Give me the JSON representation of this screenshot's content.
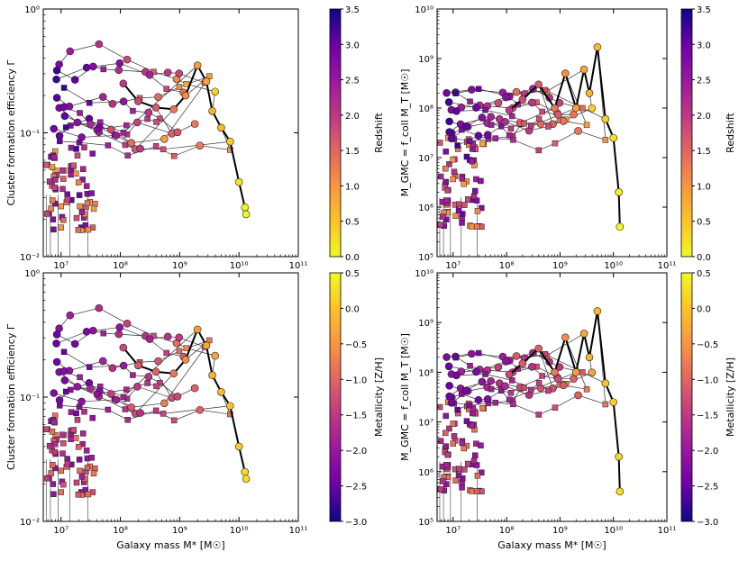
{
  "chart_data": [
    {
      "type": "scatter",
      "panel": "top-left",
      "ylabel": "Cluster formation efficiency Γ",
      "xlabel": "",
      "xlim_log10": [
        6.7,
        11
      ],
      "ylim_log10": [
        -2,
        0
      ],
      "x_ticks": [
        {
          "v": 7,
          "label": "10⁷"
        },
        {
          "v": 8,
          "label": "10⁸"
        },
        {
          "v": 9,
          "label": "10⁹"
        },
        {
          "v": 10,
          "label": "10¹⁰"
        },
        {
          "v": 11,
          "label": "10¹¹"
        }
      ],
      "y_ticks": [
        {
          "v": -2,
          "label": "10⁻²"
        },
        {
          "v": -1,
          "label": "10⁻¹"
        },
        {
          "v": 0,
          "label": "10⁰"
        }
      ],
      "color_by": "redshift",
      "colorbar": {
        "label": "Redshift",
        "min": 0,
        "max": 3.5,
        "ticks": [
          "0.0",
          "0.5",
          "1.0",
          "1.5",
          "2.0",
          "2.5",
          "3.0",
          "3.5"
        ],
        "colormap": "plasma_r"
      }
    },
    {
      "type": "scatter",
      "panel": "top-right",
      "ylabel": "M_GMC = f_coll M_T [M☉]",
      "xlabel": "",
      "xlim_log10": [
        6.7,
        11
      ],
      "ylim_log10": [
        5,
        10
      ],
      "x_ticks": [
        {
          "v": 7,
          "label": "10⁷"
        },
        {
          "v": 8,
          "label": "10⁸"
        },
        {
          "v": 9,
          "label": "10⁹"
        },
        {
          "v": 10,
          "label": "10¹⁰"
        },
        {
          "v": 11,
          "label": "10¹¹"
        }
      ],
      "y_ticks": [
        {
          "v": 5,
          "label": "10⁵"
        },
        {
          "v": 6,
          "label": "10⁶"
        },
        {
          "v": 7,
          "label": "10⁷"
        },
        {
          "v": 8,
          "label": "10⁸"
        },
        {
          "v": 9,
          "label": "10⁹"
        },
        {
          "v": 10,
          "label": "10¹⁰"
        }
      ],
      "color_by": "redshift",
      "colorbar": {
        "label": "Redshift",
        "min": 0,
        "max": 3.5,
        "ticks": [
          "0.0",
          "0.5",
          "1.0",
          "1.5",
          "2.0",
          "2.5",
          "3.0",
          "3.5"
        ],
        "colormap": "plasma_r"
      }
    },
    {
      "type": "scatter",
      "panel": "bottom-left",
      "ylabel": "Cluster formation efficiency Γ",
      "xlabel": "Galaxy mass M* [M☉]",
      "xlim_log10": [
        6.7,
        11
      ],
      "ylim_log10": [
        -2,
        0
      ],
      "x_ticks": [
        {
          "v": 7,
          "label": "10⁷"
        },
        {
          "v": 8,
          "label": "10⁸"
        },
        {
          "v": 9,
          "label": "10⁹"
        },
        {
          "v": 10,
          "label": "10¹⁰"
        },
        {
          "v": 11,
          "label": "10¹¹"
        }
      ],
      "y_ticks": [
        {
          "v": -2,
          "label": "10⁻²"
        },
        {
          "v": -1,
          "label": "10⁻¹"
        },
        {
          "v": 0,
          "label": "10⁰"
        }
      ],
      "color_by": "metallicity",
      "colorbar": {
        "label": "Metallicity [Z/H]",
        "min": -3,
        "max": 0.5,
        "ticks": [
          "−3.0",
          "−2.5",
          "−2.0",
          "−1.5",
          "−1.0",
          "−0.5",
          "0.0",
          "0.5"
        ],
        "colormap": "plasma"
      }
    },
    {
      "type": "scatter",
      "panel": "bottom-right",
      "ylabel": "M_GMC = f_coll M_T [M☉]",
      "xlabel": "Galaxy mass M* [M☉]",
      "xlim_log10": [
        6.7,
        11
      ],
      "ylim_log10": [
        5,
        10
      ],
      "x_ticks": [
        {
          "v": 7,
          "label": "10⁷"
        },
        {
          "v": 8,
          "label": "10⁸"
        },
        {
          "v": 9,
          "label": "10⁹"
        },
        {
          "v": 10,
          "label": "10¹⁰"
        },
        {
          "v": 11,
          "label": "10¹¹"
        }
      ],
      "y_ticks": [
        {
          "v": 5,
          "label": "10⁵"
        },
        {
          "v": 6,
          "label": "10⁶"
        },
        {
          "v": 7,
          "label": "10⁷"
        },
        {
          "v": 8,
          "label": "10⁸"
        },
        {
          "v": 9,
          "label": "10⁹"
        },
        {
          "v": 10,
          "label": "10¹⁰"
        }
      ],
      "color_by": "metallicity",
      "colorbar": {
        "label": "Metallicity [Z/H]",
        "min": -3,
        "max": 0.5,
        "ticks": [
          "−3.0",
          "−2.5",
          "−2.0",
          "−1.5",
          "−1.0",
          "−0.5",
          "0.0",
          "0.5"
        ],
        "colormap": "plasma"
      }
    }
  ],
  "main_track": {
    "description": "thick black line: main galaxy evolutionary track",
    "points": [
      {
        "logM": 8.05,
        "gamma": 0.25,
        "mgmc": 90000000.0,
        "z": 2.0,
        "zh": -1.3
      },
      {
        "logM": 8.3,
        "gamma": 0.18,
        "mgmc": 150000000.0,
        "z": 1.8,
        "zh": -1.1
      },
      {
        "logM": 8.6,
        "gamma": 0.16,
        "mgmc": 300000000.0,
        "z": 1.6,
        "zh": -1.0
      },
      {
        "logM": 8.9,
        "gamma": 0.155,
        "mgmc": 100000000.0,
        "z": 1.3,
        "zh": -0.8
      },
      {
        "logM": 9.1,
        "gamma": 0.2,
        "mgmc": 500000000.0,
        "z": 1.1,
        "zh": -0.6
      },
      {
        "logM": 9.3,
        "gamma": 0.35,
        "mgmc": 100000000.0,
        "z": 0.9,
        "zh": -0.4
      },
      {
        "logM": 9.45,
        "gamma": 0.26,
        "mgmc": 600000000.0,
        "z": 0.8,
        "zh": -0.3
      },
      {
        "logM": 9.55,
        "gamma": 0.15,
        "mgmc": 200000000.0,
        "z": 0.7,
        "zh": -0.2
      },
      {
        "logM": 9.7,
        "gamma": 0.11,
        "mgmc": 1700000000.0,
        "z": 0.6,
        "zh": -0.1
      },
      {
        "logM": 9.85,
        "gamma": 0.085,
        "mgmc": 60000000.0,
        "z": 0.4,
        "zh": 0.0
      },
      {
        "logM": 10.0,
        "gamma": 0.04,
        "mgmc": 25000000.0,
        "z": 0.2,
        "zh": 0.1
      },
      {
        "logM": 10.1,
        "gamma": 0.025,
        "mgmc": 2000000.0,
        "z": 0.05,
        "zh": 0.2
      },
      {
        "logM": 10.12,
        "gamma": 0.022,
        "mgmc": 400000.0,
        "z": 0.0,
        "zh": 0.25
      }
    ]
  }
}
